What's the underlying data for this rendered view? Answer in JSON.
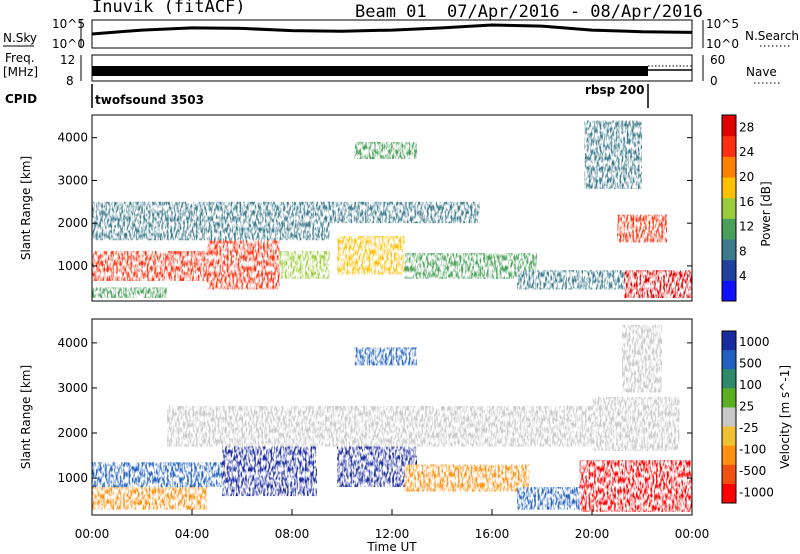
{
  "header": {
    "title": "Inuvik (fitACF)",
    "beam": "Beam 01",
    "dates": "07/Apr/2016 - 08/Apr/2016"
  },
  "noise_panel": {
    "left_label": "N.Sky",
    "left_ticks": [
      "10^5",
      "10^0"
    ],
    "right_ticks": [
      "10^5",
      "10^0"
    ],
    "right_label": "N.Search"
  },
  "freq_panel": {
    "left_label_1": "Freq.",
    "left_label_2": "[MHz]",
    "left_ticks": [
      "12",
      "8"
    ],
    "right_ticks": [
      "60",
      "0"
    ],
    "right_label": "Nave"
  },
  "cpid_panel": {
    "label": "CPID",
    "modes": [
      {
        "name": "twofsound 3503",
        "start": "00:00",
        "end": "22:00"
      },
      {
        "name": "rbsp 200",
        "start": "22:00",
        "end": "24:00"
      }
    ]
  },
  "colors": {
    "power_scale": [
      "#1010ff",
      "#2040a0",
      "#3c7a8c",
      "#4aa05a",
      "#9ccc3c",
      "#ffc000",
      "#ff7f00",
      "#ff3010",
      "#e00000"
    ],
    "velocity_scale": [
      "#1a2aa0",
      "#2060c0",
      "#2e8a6a",
      "#5ab020",
      "#c8c8c8",
      "#f0c030",
      "#ff9010",
      "#f05010",
      "#ff0000"
    ]
  },
  "chart_data": [
    {
      "type": "heatmap",
      "panel": "power",
      "xlabel": "Time UT",
      "ylabel": "Slant Range [km]",
      "xticks": [
        "00:00",
        "04:00",
        "08:00",
        "12:00",
        "16:00",
        "20:00",
        "00:00"
      ],
      "yticks": [
        "1000",
        "2000",
        "3000",
        "4000"
      ],
      "xlim_hours": [
        0,
        24
      ],
      "ylim_km": [
        180,
        4530
      ],
      "colorbar_label": "Power [dB]",
      "colorbar_ticks": [
        "28",
        "24",
        "20",
        "16",
        "12",
        "8",
        "4"
      ],
      "colorbar_range": [
        0,
        30
      ],
      "regions": [
        {
          "t0": 0.0,
          "t1": 4.6,
          "r0": 650,
          "r1": 1350,
          "level": 24
        },
        {
          "t0": 4.6,
          "t1": 7.5,
          "r0": 450,
          "r1": 1600,
          "level": 26
        },
        {
          "t0": 7.5,
          "t1": 9.5,
          "r0": 700,
          "r1": 1350,
          "level": 14
        },
        {
          "t0": 9.8,
          "t1": 12.5,
          "r0": 800,
          "r1": 1700,
          "level": 18
        },
        {
          "t0": 12.5,
          "t1": 17.8,
          "r0": 700,
          "r1": 1300,
          "level": 12
        },
        {
          "t0": 17.0,
          "t1": 21.5,
          "r0": 450,
          "r1": 900,
          "level": 9
        },
        {
          "t0": 21.3,
          "t1": 24.0,
          "r0": 250,
          "r1": 900,
          "level": 27
        },
        {
          "t0": 21.0,
          "t1": 23.0,
          "r0": 1550,
          "r1": 2200,
          "level": 25
        },
        {
          "t0": 0.0,
          "t1": 9.5,
          "r0": 1600,
          "r1": 2500,
          "level": 8
        },
        {
          "t0": 8.8,
          "t1": 15.5,
          "r0": 2000,
          "r1": 2500,
          "level": 8
        },
        {
          "t0": 19.7,
          "t1": 22.0,
          "r0": 2800,
          "r1": 4400,
          "level": 7
        },
        {
          "t0": 10.5,
          "t1": 13.0,
          "r0": 3500,
          "r1": 3900,
          "level": 10
        },
        {
          "t0": 0.0,
          "t1": 3.0,
          "r0": 250,
          "r1": 500,
          "level": 12
        }
      ]
    },
    {
      "type": "heatmap",
      "panel": "velocity",
      "xlabel": "Time UT",
      "ylabel": "Slant Range [km]",
      "xticks": [
        "00:00",
        "04:00",
        "08:00",
        "12:00",
        "16:00",
        "20:00",
        "00:00"
      ],
      "yticks": [
        "1000",
        "2000",
        "3000",
        "4000"
      ],
      "xlim_hours": [
        0,
        24
      ],
      "ylim_km": [
        180,
        4530
      ],
      "colorbar_label": "Velocity [m s^-1]",
      "colorbar_ticks": [
        "1000",
        "500",
        "100",
        "25",
        "-25",
        "-100",
        "-500",
        "-1000"
      ],
      "colorbar_range": [
        -1000,
        1000
      ],
      "regions": [
        {
          "t0": 0.0,
          "t1": 4.6,
          "r0": 300,
          "r1": 800,
          "level": -300
        },
        {
          "t0": 0.0,
          "t1": 5.2,
          "r0": 800,
          "r1": 1350,
          "level": 150
        },
        {
          "t0": 5.2,
          "t1": 9.0,
          "r0": 600,
          "r1": 1700,
          "level": 600
        },
        {
          "t0": 9.8,
          "t1": 13.0,
          "r0": 800,
          "r1": 1700,
          "level": 700
        },
        {
          "t0": 12.5,
          "t1": 17.5,
          "r0": 700,
          "r1": 1300,
          "level": -200
        },
        {
          "t0": 17.0,
          "t1": 20.0,
          "r0": 300,
          "r1": 800,
          "level": 120
        },
        {
          "t0": 19.5,
          "t1": 24.0,
          "r0": 250,
          "r1": 1400,
          "level": -600
        },
        {
          "t0": 3.0,
          "t1": 20.5,
          "r0": 1700,
          "r1": 2600,
          "level": 0
        },
        {
          "t0": 20.0,
          "t1": 23.5,
          "r0": 1600,
          "r1": 2800,
          "level": 0
        },
        {
          "t0": 21.2,
          "t1": 22.8,
          "r0": 2900,
          "r1": 4400,
          "level": 0
        },
        {
          "t0": 10.5,
          "t1": 13.0,
          "r0": 3500,
          "r1": 3900,
          "level": 200
        }
      ]
    },
    {
      "type": "line",
      "panel": "noise",
      "series": [
        {
          "name": "N.Sky",
          "x": [
            0,
            2,
            4,
            6,
            8,
            10,
            12,
            14,
            16,
            18,
            20,
            22,
            24
          ],
          "y": [
            2.5,
            3.2,
            3.6,
            3.5,
            3.1,
            3.0,
            3.2,
            3.6,
            4.1,
            3.9,
            3.2,
            2.9,
            2.8
          ]
        }
      ]
    }
  ]
}
